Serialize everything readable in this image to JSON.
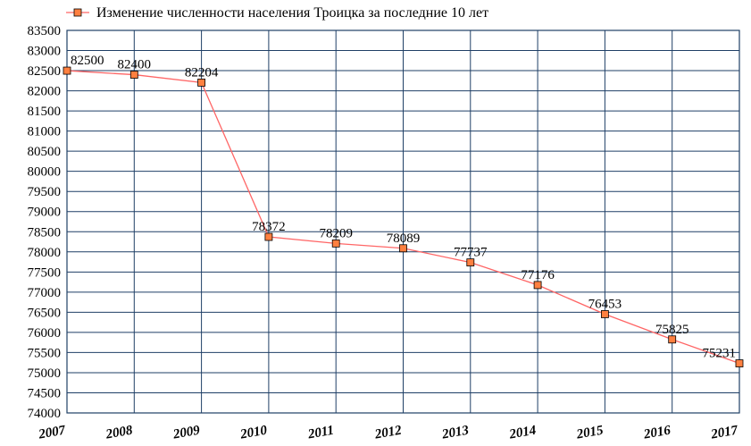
{
  "chart_data": {
    "type": "line",
    "title": "",
    "xlabel": "",
    "ylabel": "",
    "x": [
      "2007",
      "2008",
      "2009",
      "2010",
      "2011",
      "2012",
      "2013",
      "2014",
      "2015",
      "2016",
      "2017"
    ],
    "series": [
      {
        "name": "Изменение численности населения Троицка за последние 10 лет",
        "values": [
          82500,
          82400,
          82204,
          78372,
          78209,
          78089,
          77737,
          77176,
          76453,
          75825,
          75231
        ],
        "labels": [
          "82500",
          "82400",
          "82204",
          "78372",
          "78209",
          "78089",
          "77737",
          "77176",
          "76453",
          "75825",
          "75231"
        ]
      }
    ],
    "ylim": [
      74000,
      83500
    ],
    "yticks": [
      "83500",
      "83000",
      "82500",
      "82000",
      "81500",
      "81000",
      "80500",
      "80000",
      "79500",
      "79000",
      "78500",
      "78000",
      "77500",
      "77000",
      "76500",
      "76000",
      "75500",
      "75000",
      "74500",
      "74000"
    ],
    "grid": true,
    "legend": "top-left",
    "colors": {
      "line": "#ff6666",
      "marker_fill": "#ff8040",
      "marker_stroke": "#000000",
      "grid": "#1f3f66"
    }
  }
}
